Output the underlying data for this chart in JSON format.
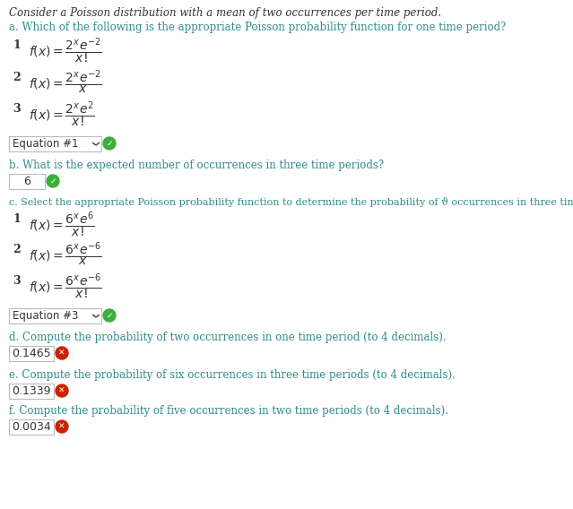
{
  "bg_color": "#ffffff",
  "text_color": "#333333",
  "teal_color": "#2e8b8b",
  "header_text": "Consider a Poisson distribution with a mean of two occurrences per time period.",
  "part_a_label": "a. Which of the following is the appropriate Poisson probability function for one time period?",
  "part_a_answer": "Equation #1",
  "part_b_label": "b. What is the expected number of occurrences in three time periods?",
  "part_b_answer": "6",
  "part_c_label": "c. Select the appropriate Poisson probability function to determine the probability of ϑ occurrences in three time periods.",
  "part_c_answer": "Equation #3",
  "part_d_label": "d. Compute the probability of two occurrences in one time period (to 4 decimals).",
  "part_d_answer": "0.1465",
  "part_e_label": "e. Compute the probability of six occurrences in three time periods (to 4 decimals).",
  "part_e_answer": "0.1339",
  "part_f_label": "f. Compute the probability of five occurrences in two time periods (to 4 decimals).",
  "part_f_answer": "0.0034",
  "green_color": "#3dae3d",
  "red_color": "#cc2200",
  "gray_border": "#bbbbbb"
}
